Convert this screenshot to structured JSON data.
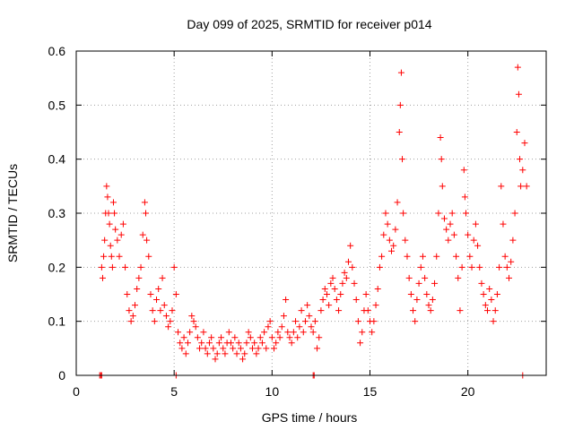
{
  "chart_data": {
    "type": "scatter",
    "title": "Day 099 of 2025, SRMTID for receiver p014",
    "xlabel": "GPS time / hours",
    "ylabel": "SRMTID / TECUs",
    "xlim": [
      0,
      24
    ],
    "ylim": [
      0,
      0.6
    ],
    "xticks": [
      0,
      5,
      10,
      15,
      20
    ],
    "xtick_labels": [
      "0",
      "5",
      "10",
      "15",
      "20"
    ],
    "yticks": [
      0,
      0.1,
      0.2,
      0.3,
      0.4,
      0.5,
      0.6
    ],
    "ytick_labels": [
      "0",
      "0.1",
      "0.2",
      "0.3",
      "0.4",
      "0.5",
      "0.6"
    ],
    "grid": true,
    "marker": "+",
    "color": "#ff0000",
    "series": [
      {
        "name": "SRMTID",
        "points": [
          [
            1.2,
            0.0
          ],
          [
            1.25,
            0.0
          ],
          [
            1.3,
            0.0
          ],
          [
            12.1,
            0.0
          ],
          [
            12.15,
            0.0
          ],
          [
            5.1,
            0.0
          ],
          [
            22.8,
            0.0
          ],
          [
            1.3,
            0.2
          ],
          [
            1.35,
            0.18
          ],
          [
            1.4,
            0.22
          ],
          [
            1.45,
            0.25
          ],
          [
            1.5,
            0.3
          ],
          [
            1.55,
            0.35
          ],
          [
            1.6,
            0.33
          ],
          [
            1.65,
            0.3
          ],
          [
            1.7,
            0.28
          ],
          [
            1.75,
            0.24
          ],
          [
            1.8,
            0.22
          ],
          [
            1.85,
            0.2
          ],
          [
            1.9,
            0.32
          ],
          [
            1.95,
            0.3
          ],
          [
            2.0,
            0.27
          ],
          [
            2.1,
            0.25
          ],
          [
            2.2,
            0.22
          ],
          [
            2.3,
            0.26
          ],
          [
            2.4,
            0.28
          ],
          [
            2.5,
            0.2
          ],
          [
            2.6,
            0.15
          ],
          [
            2.7,
            0.12
          ],
          [
            2.8,
            0.1
          ],
          [
            2.9,
            0.11
          ],
          [
            3.0,
            0.13
          ],
          [
            3.1,
            0.16
          ],
          [
            3.2,
            0.18
          ],
          [
            3.3,
            0.2
          ],
          [
            3.4,
            0.26
          ],
          [
            3.5,
            0.32
          ],
          [
            3.55,
            0.3
          ],
          [
            3.6,
            0.25
          ],
          [
            3.7,
            0.22
          ],
          [
            3.8,
            0.15
          ],
          [
            3.9,
            0.12
          ],
          [
            4.0,
            0.1
          ],
          [
            4.1,
            0.14
          ],
          [
            4.2,
            0.16
          ],
          [
            4.3,
            0.12
          ],
          [
            4.4,
            0.18
          ],
          [
            4.5,
            0.13
          ],
          [
            4.6,
            0.11
          ],
          [
            4.7,
            0.09
          ],
          [
            4.8,
            0.1
          ],
          [
            4.9,
            0.12
          ],
          [
            5.0,
            0.2
          ],
          [
            5.1,
            0.15
          ],
          [
            5.2,
            0.08
          ],
          [
            5.3,
            0.06
          ],
          [
            5.4,
            0.05
          ],
          [
            5.5,
            0.07
          ],
          [
            5.6,
            0.04
          ],
          [
            5.7,
            0.06
          ],
          [
            5.8,
            0.08
          ],
          [
            5.9,
            0.11
          ],
          [
            6.0,
            0.1
          ],
          [
            6.1,
            0.09
          ],
          [
            6.2,
            0.07
          ],
          [
            6.3,
            0.05
          ],
          [
            6.4,
            0.06
          ],
          [
            6.5,
            0.08
          ],
          [
            6.6,
            0.05
          ],
          [
            6.7,
            0.04
          ],
          [
            6.8,
            0.06
          ],
          [
            6.9,
            0.07
          ],
          [
            7.0,
            0.05
          ],
          [
            7.1,
            0.03
          ],
          [
            7.2,
            0.04
          ],
          [
            7.3,
            0.06
          ],
          [
            7.4,
            0.07
          ],
          [
            7.5,
            0.05
          ],
          [
            7.6,
            0.04
          ],
          [
            7.7,
            0.06
          ],
          [
            7.8,
            0.08
          ],
          [
            7.9,
            0.06
          ],
          [
            8.0,
            0.05
          ],
          [
            8.1,
            0.07
          ],
          [
            8.2,
            0.04
          ],
          [
            8.3,
            0.06
          ],
          [
            8.4,
            0.05
          ],
          [
            8.5,
            0.03
          ],
          [
            8.6,
            0.04
          ],
          [
            8.7,
            0.06
          ],
          [
            8.8,
            0.08
          ],
          [
            8.9,
            0.07
          ],
          [
            9.0,
            0.05
          ],
          [
            9.1,
            0.06
          ],
          [
            9.2,
            0.04
          ],
          [
            9.3,
            0.05
          ],
          [
            9.4,
            0.07
          ],
          [
            9.5,
            0.06
          ],
          [
            9.6,
            0.08
          ],
          [
            9.7,
            0.05
          ],
          [
            9.8,
            0.09
          ],
          [
            9.9,
            0.1
          ],
          [
            10.0,
            0.07
          ],
          [
            10.1,
            0.05
          ],
          [
            10.2,
            0.06
          ],
          [
            10.3,
            0.08
          ],
          [
            10.4,
            0.07
          ],
          [
            10.5,
            0.09
          ],
          [
            10.6,
            0.11
          ],
          [
            10.7,
            0.14
          ],
          [
            10.8,
            0.08
          ],
          [
            10.9,
            0.07
          ],
          [
            11.0,
            0.06
          ],
          [
            11.1,
            0.08
          ],
          [
            11.2,
            0.1
          ],
          [
            11.3,
            0.07
          ],
          [
            11.4,
            0.09
          ],
          [
            11.5,
            0.12
          ],
          [
            11.6,
            0.08
          ],
          [
            11.7,
            0.1
          ],
          [
            11.8,
            0.13
          ],
          [
            11.9,
            0.11
          ],
          [
            12.0,
            0.09
          ],
          [
            12.1,
            0.08
          ],
          [
            12.2,
            0.1
          ],
          [
            12.3,
            0.05
          ],
          [
            12.4,
            0.07
          ],
          [
            12.5,
            0.12
          ],
          [
            12.6,
            0.14
          ],
          [
            12.7,
            0.16
          ],
          [
            12.8,
            0.15
          ],
          [
            12.9,
            0.13
          ],
          [
            13.0,
            0.17
          ],
          [
            13.1,
            0.18
          ],
          [
            13.2,
            0.16
          ],
          [
            13.3,
            0.14
          ],
          [
            13.4,
            0.12
          ],
          [
            13.5,
            0.15
          ],
          [
            13.6,
            0.17
          ],
          [
            13.7,
            0.19
          ],
          [
            13.8,
            0.18
          ],
          [
            13.9,
            0.21
          ],
          [
            14.0,
            0.24
          ],
          [
            14.1,
            0.2
          ],
          [
            14.2,
            0.17
          ],
          [
            14.3,
            0.14
          ],
          [
            14.4,
            0.1
          ],
          [
            14.5,
            0.06
          ],
          [
            14.6,
            0.08
          ],
          [
            14.7,
            0.12
          ],
          [
            14.8,
            0.15
          ],
          [
            14.9,
            0.12
          ],
          [
            15.0,
            0.1
          ],
          [
            15.1,
            0.08
          ],
          [
            15.2,
            0.1
          ],
          [
            15.3,
            0.13
          ],
          [
            15.4,
            0.16
          ],
          [
            15.5,
            0.2
          ],
          [
            15.6,
            0.22
          ],
          [
            15.7,
            0.26
          ],
          [
            15.8,
            0.3
          ],
          [
            15.9,
            0.28
          ],
          [
            16.0,
            0.25
          ],
          [
            16.1,
            0.23
          ],
          [
            16.2,
            0.24
          ],
          [
            16.3,
            0.27
          ],
          [
            16.4,
            0.32
          ],
          [
            16.5,
            0.45
          ],
          [
            16.55,
            0.5
          ],
          [
            16.6,
            0.56
          ],
          [
            16.65,
            0.4
          ],
          [
            16.7,
            0.3
          ],
          [
            16.8,
            0.25
          ],
          [
            16.9,
            0.22
          ],
          [
            17.0,
            0.18
          ],
          [
            17.1,
            0.15
          ],
          [
            17.2,
            0.12
          ],
          [
            17.3,
            0.1
          ],
          [
            17.4,
            0.14
          ],
          [
            17.5,
            0.17
          ],
          [
            17.6,
            0.2
          ],
          [
            17.7,
            0.22
          ],
          [
            17.8,
            0.18
          ],
          [
            17.9,
            0.15
          ],
          [
            18.0,
            0.13
          ],
          [
            18.1,
            0.12
          ],
          [
            18.2,
            0.14
          ],
          [
            18.3,
            0.17
          ],
          [
            18.4,
            0.22
          ],
          [
            18.5,
            0.3
          ],
          [
            18.6,
            0.44
          ],
          [
            18.65,
            0.4
          ],
          [
            18.7,
            0.35
          ],
          [
            18.8,
            0.29
          ],
          [
            18.9,
            0.27
          ],
          [
            19.0,
            0.25
          ],
          [
            19.1,
            0.28
          ],
          [
            19.2,
            0.3
          ],
          [
            19.3,
            0.26
          ],
          [
            19.4,
            0.22
          ],
          [
            19.5,
            0.18
          ],
          [
            19.6,
            0.12
          ],
          [
            19.7,
            0.2
          ],
          [
            19.8,
            0.38
          ],
          [
            19.85,
            0.33
          ],
          [
            19.9,
            0.3
          ],
          [
            20.0,
            0.26
          ],
          [
            20.1,
            0.22
          ],
          [
            20.2,
            0.2
          ],
          [
            20.3,
            0.25
          ],
          [
            20.4,
            0.28
          ],
          [
            20.5,
            0.24
          ],
          [
            20.6,
            0.2
          ],
          [
            20.7,
            0.17
          ],
          [
            20.8,
            0.15
          ],
          [
            20.9,
            0.13
          ],
          [
            21.0,
            0.12
          ],
          [
            21.1,
            0.16
          ],
          [
            21.2,
            0.14
          ],
          [
            21.3,
            0.1
          ],
          [
            21.4,
            0.12
          ],
          [
            21.5,
            0.15
          ],
          [
            21.6,
            0.2
          ],
          [
            21.7,
            0.35
          ],
          [
            21.8,
            0.28
          ],
          [
            21.9,
            0.22
          ],
          [
            22.0,
            0.2
          ],
          [
            22.1,
            0.18
          ],
          [
            22.2,
            0.21
          ],
          [
            22.3,
            0.25
          ],
          [
            22.4,
            0.3
          ],
          [
            22.5,
            0.45
          ],
          [
            22.55,
            0.57
          ],
          [
            22.6,
            0.52
          ],
          [
            22.65,
            0.4
          ],
          [
            22.7,
            0.35
          ],
          [
            22.8,
            0.38
          ],
          [
            22.9,
            0.43
          ],
          [
            23.0,
            0.35
          ]
        ]
      }
    ]
  }
}
